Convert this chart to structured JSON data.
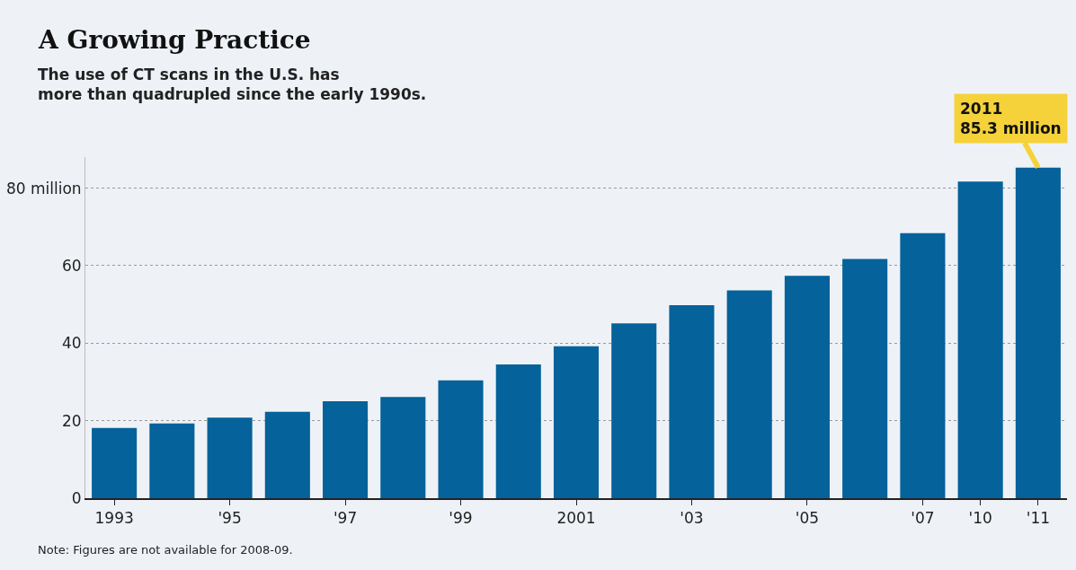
{
  "chart_data": {
    "type": "bar",
    "title": "A Growing Practice",
    "subtitle": "The use of CT scans in the U.S. has more than quadrupled since the early 1990s.",
    "categories": [
      "1993",
      null,
      "'95",
      null,
      "'97",
      null,
      "'99",
      null,
      "2001",
      null,
      "'03",
      null,
      "'05",
      null,
      "'07",
      "'10",
      "'11"
    ],
    "values": [
      18.1,
      19.3,
      20.8,
      22.3,
      25.0,
      26.1,
      30.4,
      34.5,
      39.2,
      45.1,
      49.8,
      53.6,
      57.4,
      61.7,
      68.4,
      81.7,
      85.3
    ],
    "color": "#05629a",
    "ylim": [
      0,
      88
    ],
    "yticks": [
      0,
      20,
      40,
      60,
      {
        "value": 80,
        "label": "80 million"
      }
    ],
    "grid": "y",
    "annotations": [
      {
        "text": "2011\n85.3 million",
        "x": "'11",
        "y": 85.3
      },
      "Note: Figures are not available for 2008-09."
    ]
  }
}
